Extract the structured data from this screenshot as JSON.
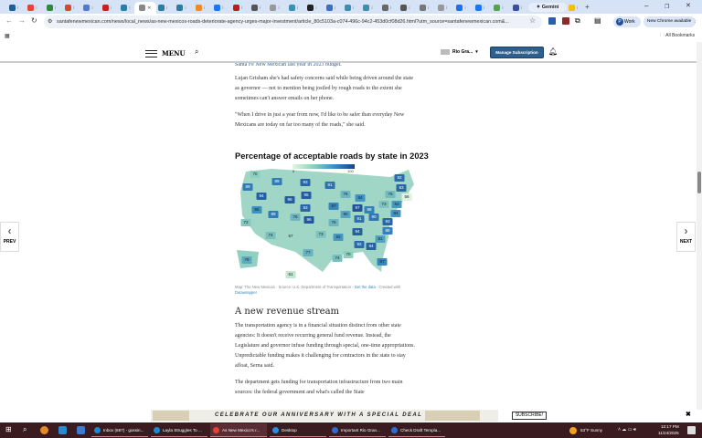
{
  "browser": {
    "tabs": [
      {
        "color": "#1f5d96"
      },
      {
        "color": "#e84335"
      },
      {
        "color": "#2e8b3a"
      },
      {
        "color": "#d44a2a"
      },
      {
        "color": "#4f7ad6"
      },
      {
        "color": "#c5221f"
      },
      {
        "color": "#2a7ea6"
      },
      {
        "color": "#888",
        "active": true
      },
      {
        "color": "#2a7ea6"
      },
      {
        "color": "#2a7ea6"
      },
      {
        "color": "#f08a24"
      },
      {
        "color": "#1877f2"
      },
      {
        "color": "#c91818"
      },
      {
        "color": "#555"
      },
      {
        "color": "#999"
      },
      {
        "color": "#3b8fb0"
      },
      {
        "color": "#222"
      },
      {
        "color": "#3a6fc5"
      },
      {
        "color": "#3b8fb0"
      },
      {
        "color": "#3b8fb0"
      },
      {
        "color": "#666"
      },
      {
        "color": "#555"
      },
      {
        "color": "#777"
      },
      {
        "color": "#999"
      },
      {
        "color": "#1a73e8"
      },
      {
        "color": "#1877f2"
      },
      {
        "color": "#5aa050"
      },
      {
        "color": "#3a4fa0"
      },
      {
        "color": "#f2c200"
      },
      {
        "color": "#1a8a8a"
      },
      {
        "color": "#f2c200"
      }
    ],
    "new_tab": "+",
    "gemini_label": "Gemini",
    "url": "santafenewmexican.com/news/local_news/as-new-mexicos-roads-deteriorate-agency-urges-major-investment/article_80c5103a-c074-496c-94c2-453d0cf08d26.html?utm_source=santafenewmexican.com&...",
    "profile_label": "Work",
    "profile_initial": "P",
    "update_label": "New Chrome available",
    "all_bookmarks": "All Bookmarks"
  },
  "site": {
    "menu_label": "MENU",
    "user_label": "Rio Gra...",
    "manage_label": "Manage Subscription",
    "prev_label": "PREV",
    "next_label": "NEXT"
  },
  "article": {
    "para_top": "Santa Fe New Mexican last year in 2023 budget.",
    "para1": "Lujan Grisham she's had safety concerns said while being driven around the state as governor — not to mention being jostled by rough roads to the extent she sometimes can't answer emails on her phone.",
    "para2": "\"When I drive in just a year from now, I'd like to be safer than everyday New Mexicans are today on far too many of the roads,\" she said.",
    "subhead": "A new revenue stream",
    "para3": "The transportation agency is in a financial situation distinct from other state agencies: It doesn't receive recurring general fund revenue. Instead, the Legislature and governor infuse funding through special, one-time appropriations. Unpredictable funding makes it challenging for contractors in the state to stay afloat, Serna said.",
    "para4": "The department gets funding for transportation infrastructure from two main sources: the federal government and what's called the State"
  },
  "chart_data": {
    "type": "choropleth-map",
    "title": "Percentage of acceptable roads by state in 2023",
    "legend": {
      "min_label": "8",
      "max_label": "100",
      "colors": [
        "#e4f5df",
        "#8ed0bf",
        "#3b90c4",
        "#17428f"
      ]
    },
    "values": {
      "WA": 70,
      "OR": 89,
      "ID": 94,
      "MT": 89,
      "WY": 95,
      "ND": 93,
      "SD": 95,
      "NE": 93,
      "KS": 96,
      "MN": 91,
      "IA": 87,
      "WI": 76,
      "MI": 84,
      "IL": 80,
      "IN": 97,
      "OH": 88,
      "KY": 91,
      "WV": 90,
      "VA": 93,
      "NC": 88,
      "SC": 81,
      "GA": 94,
      "AL": 92,
      "TN": 94,
      "MS": 70,
      "LA": 74,
      "AR": 83,
      "MO": 76,
      "OK": 73,
      "TX": 77,
      "NM": 67,
      "AZ": 74,
      "CO": 76,
      "UT": 89,
      "NV": 85,
      "CA": 72,
      "FL": 87,
      "AK": 79,
      "HI": 61,
      "ME": 92,
      "VT": 93,
      "NY": 75,
      "MA": 56,
      "PA": 73,
      "NJ": 83,
      "MD": 84
    },
    "caption_prefix": "Map: The New Mexican · Source: U.S. Department of Transportation · ",
    "caption_link": "Get the data",
    "caption_mid": " · Created with ",
    "caption_tool": "Datawrapper"
  },
  "banner": {
    "text": "CELEBRATE OUR ANNIVERSARY WITH A SPECIAL DEAL",
    "subscribe": "SUBSCRIBE!",
    "close": "✖"
  },
  "taskbar": {
    "apps": [
      {
        "label": "Inbox (887) - gossin...",
        "color": "#1e88d0"
      },
      {
        "label": "Layla Struggles To ...",
        "color": "#1e88d0"
      },
      {
        "label": "As New Mexico's r...",
        "color": "#e34133",
        "active": true
      },
      {
        "label": "Desktop",
        "color": "#2a8ee0"
      },
      {
        "label": "Important Rio Gran...",
        "color": "#2a6fd0"
      },
      {
        "label": "Check Draft Templa...",
        "color": "#2a6fd0"
      }
    ],
    "weather": "53°F  Sunny",
    "time": "12:17 PM",
    "date": "11/24/2025"
  }
}
